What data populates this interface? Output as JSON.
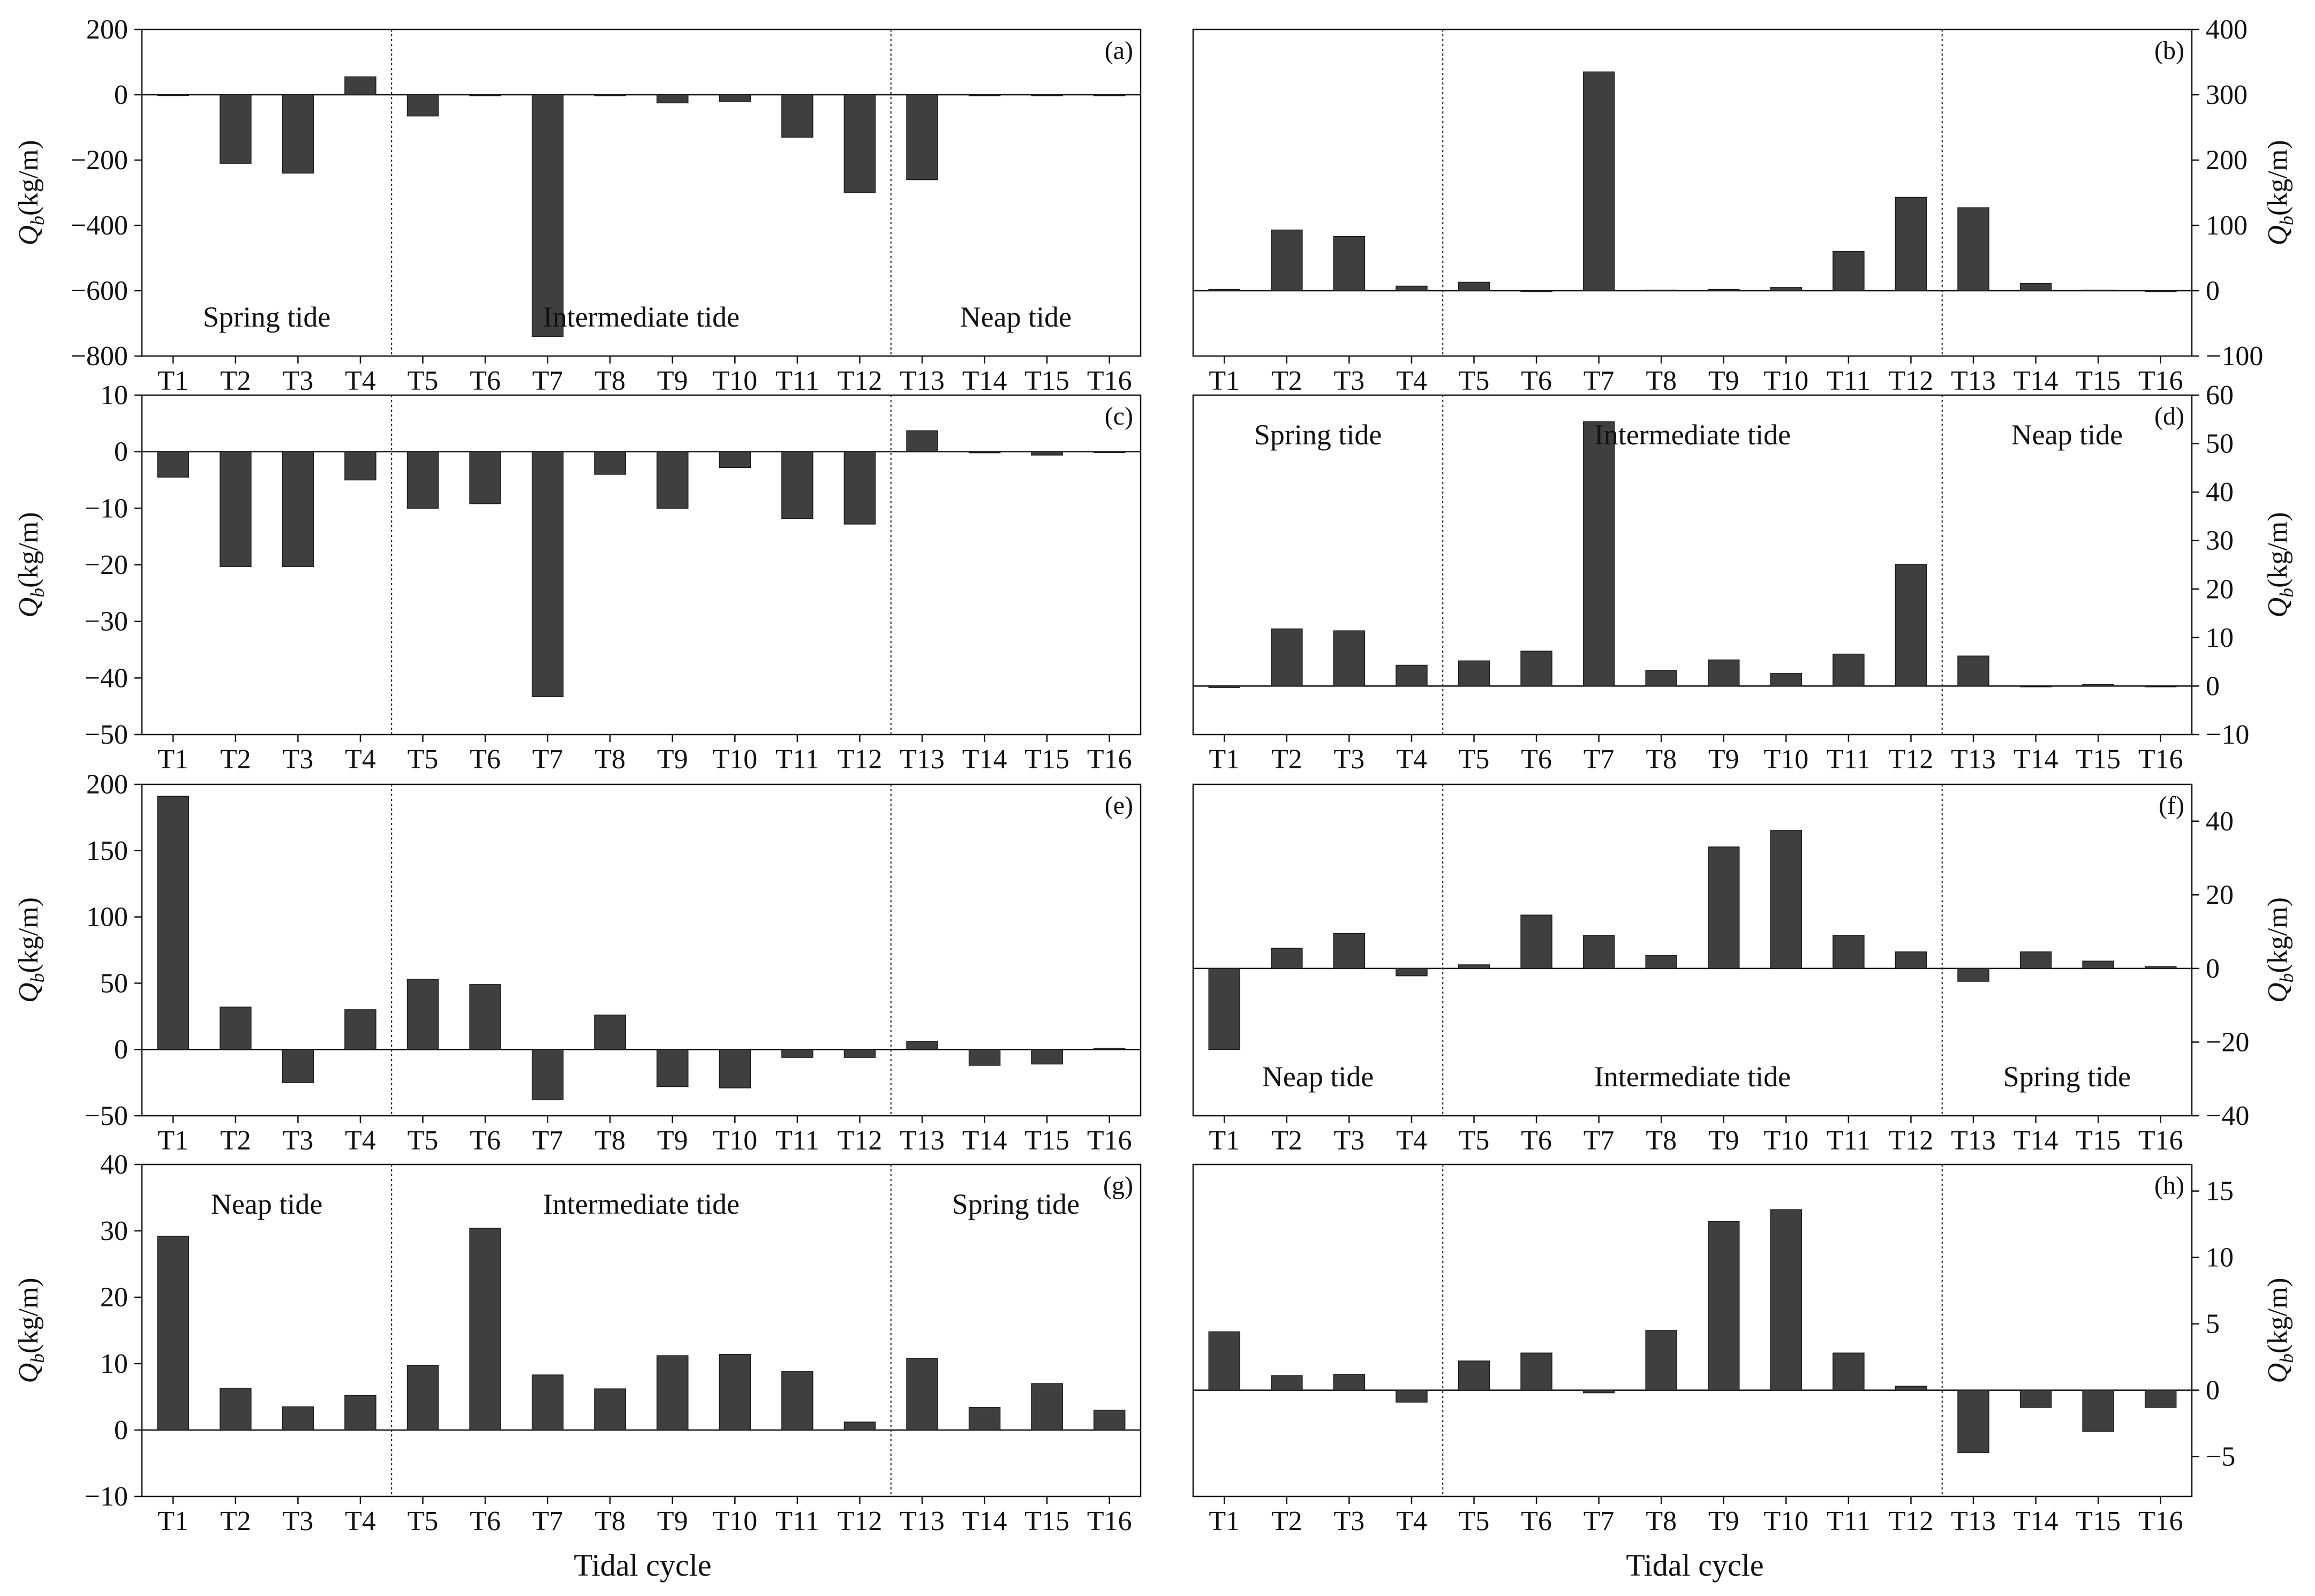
{
  "figure": {
    "xlabel_left": "Tidal cycle",
    "xlabel_right": "Tidal cycle",
    "bar_color": "#3f3f3f",
    "axis_color": "#111111"
  },
  "chart_data": [
    {
      "id": "a",
      "type": "bar",
      "panel_label": "(a)",
      "ylabel": "Q_b(kg/m)",
      "axis_side": "left",
      "categories": [
        "T1",
        "T2",
        "T3",
        "T4",
        "T5",
        "T6",
        "T7",
        "T8",
        "T9",
        "T10",
        "T11",
        "T12",
        "T13",
        "T14",
        "T15",
        "T16"
      ],
      "values": [
        -2,
        -210,
        -240,
        55,
        -65,
        -3,
        -740,
        -3,
        -25,
        -20,
        -130,
        -300,
        -260,
        -3,
        -3,
        -3
      ],
      "ylim": [
        -800,
        200
      ],
      "yticks": [
        -800,
        -600,
        -400,
        -200,
        0,
        200
      ],
      "tide_labels": [
        "Spring tide",
        "Intermediate tide",
        "Neap tide"
      ],
      "tide_label_pos": "bottom"
    },
    {
      "id": "b",
      "type": "bar",
      "panel_label": "(b)",
      "ylabel": "Q_b(kg/m)",
      "axis_side": "right",
      "categories": [
        "T1",
        "T2",
        "T3",
        "T4",
        "T5",
        "T6",
        "T7",
        "T8",
        "T9",
        "T10",
        "T11",
        "T12",
        "T13",
        "T14",
        "T15",
        "T16"
      ],
      "values": [
        2,
        93,
        83,
        7,
        13,
        0,
        335,
        1,
        2,
        5,
        60,
        143,
        127,
        11,
        1,
        -1
      ],
      "ylim": [
        -100,
        400
      ],
      "yticks": [
        -100,
        0,
        100,
        200,
        300,
        400
      ],
      "tide_labels": [],
      "tide_label_pos": "none"
    },
    {
      "id": "c",
      "type": "bar",
      "panel_label": "(c)",
      "ylabel": "Q_b(kg/m)",
      "axis_side": "left",
      "categories": [
        "T1",
        "T2",
        "T3",
        "T4",
        "T5",
        "T6",
        "T7",
        "T8",
        "T9",
        "T10",
        "T11",
        "T12",
        "T13",
        "T14",
        "T15",
        "T16"
      ],
      "values": [
        -4.5,
        -20.3,
        -20.3,
        -5,
        -10,
        -9.2,
        -43.3,
        -4,
        -10,
        -2.8,
        -11.8,
        -12.8,
        3.7,
        -0.2,
        -0.6,
        -0.1
      ],
      "ylim": [
        -50,
        10
      ],
      "yticks": [
        -50,
        -40,
        -30,
        -20,
        -10,
        0,
        10
      ],
      "tide_labels": [],
      "tide_label_pos": "none"
    },
    {
      "id": "d",
      "type": "bar",
      "panel_label": "(d)",
      "ylabel": "Q_b(kg/m)",
      "axis_side": "right",
      "categories": [
        "T1",
        "T2",
        "T3",
        "T4",
        "T5",
        "T6",
        "T7",
        "T8",
        "T9",
        "T10",
        "T11",
        "T12",
        "T13",
        "T14",
        "T15",
        "T16"
      ],
      "values": [
        -0.3,
        11.8,
        11.4,
        4.3,
        5.2,
        7.2,
        54.5,
        3.2,
        5.4,
        2.6,
        6.6,
        25.1,
        6.2,
        0,
        0.3,
        0
      ],
      "ylim": [
        -10,
        60
      ],
      "yticks": [
        -10,
        0,
        10,
        20,
        30,
        40,
        50,
        60
      ],
      "tide_labels": [
        "Spring tide",
        "Intermediate tide",
        "Neap tide"
      ],
      "tide_label_pos": "top"
    },
    {
      "id": "e",
      "type": "bar",
      "panel_label": "(e)",
      "ylabel": "Q_b(kg/m)",
      "axis_side": "left",
      "categories": [
        "T1",
        "T2",
        "T3",
        "T4",
        "T5",
        "T6",
        "T7",
        "T8",
        "T9",
        "T10",
        "T11",
        "T12",
        "T13",
        "T14",
        "T15",
        "T16"
      ],
      "values": [
        191,
        32,
        -25,
        30,
        53,
        49,
        -38,
        26,
        -28,
        -29,
        -6,
        -6,
        6,
        -12,
        -11,
        1
      ],
      "ylim": [
        -50,
        200
      ],
      "yticks": [
        -50,
        0,
        50,
        100,
        150,
        200
      ],
      "tide_labels": [],
      "tide_label_pos": "none"
    },
    {
      "id": "f",
      "type": "bar",
      "panel_label": "(f)",
      "ylabel": "Q_b(kg/m)",
      "axis_side": "right",
      "categories": [
        "T1",
        "T2",
        "T3",
        "T4",
        "T5",
        "T6",
        "T7",
        "T8",
        "T9",
        "T10",
        "T11",
        "T12",
        "T13",
        "T14",
        "T15",
        "T16"
      ],
      "values": [
        -22,
        5.5,
        9.5,
        -2,
        1,
        14.5,
        9,
        3.5,
        33,
        37.5,
        9,
        4.5,
        -3.5,
        4.5,
        2,
        0.5
      ],
      "ylim": [
        -40,
        50
      ],
      "yticks": [
        -40,
        -20,
        0,
        20,
        40
      ],
      "tide_labels": [
        "Neap tide",
        "Intermediate tide",
        "Spring tide"
      ],
      "tide_label_pos": "bottom"
    },
    {
      "id": "g",
      "type": "bar",
      "panel_label": "(g)",
      "ylabel": "Q_b(kg/m)",
      "axis_side": "left",
      "categories": [
        "T1",
        "T2",
        "T3",
        "T4",
        "T5",
        "T6",
        "T7",
        "T8",
        "T9",
        "T10",
        "T11",
        "T12",
        "T13",
        "T14",
        "T15",
        "T16"
      ],
      "values": [
        29.2,
        6.3,
        3.5,
        5.2,
        9.7,
        30.4,
        8.3,
        6.2,
        11.2,
        11.4,
        8.8,
        1.2,
        10.8,
        3.4,
        7,
        3
      ],
      "ylim": [
        -10,
        40
      ],
      "yticks": [
        -10,
        0,
        10,
        20,
        30,
        40
      ],
      "tide_labels": [
        "Neap tide",
        "Intermediate tide",
        "Spring tide"
      ],
      "tide_label_pos": "top"
    },
    {
      "id": "h",
      "type": "bar",
      "panel_label": "(h)",
      "ylabel": "Q_b(kg/m)",
      "axis_side": "right",
      "categories": [
        "T1",
        "T2",
        "T3",
        "T4",
        "T5",
        "T6",
        "T7",
        "T8",
        "T9",
        "T10",
        "T11",
        "T12",
        "T13",
        "T14",
        "T15",
        "T16"
      ],
      "values": [
        4.4,
        1.1,
        1.2,
        -0.9,
        2.2,
        2.8,
        -0.2,
        4.5,
        12.7,
        13.6,
        2.8,
        0.3,
        -4.7,
        -1.3,
        -3.1,
        -1.3
      ],
      "ylim": [
        -8,
        17
      ],
      "yticks": [
        -5,
        0,
        5,
        10,
        15
      ],
      "tide_labels": [],
      "tide_label_pos": "none"
    }
  ]
}
